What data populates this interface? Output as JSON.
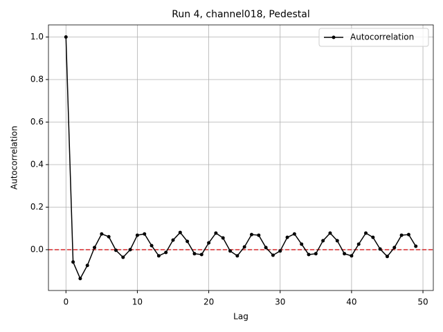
{
  "chart_data": {
    "type": "line",
    "title": "Run 4, channel018, Pedestal",
    "x_label": "Lag",
    "y_label": "Autocorrelation",
    "x": [
      0,
      1,
      2,
      3,
      4,
      5,
      6,
      7,
      8,
      9,
      10,
      11,
      12,
      13,
      14,
      15,
      16,
      17,
      18,
      19,
      20,
      21,
      22,
      23,
      24,
      25,
      26,
      27,
      28,
      29,
      30,
      31,
      32,
      33,
      34,
      35,
      36,
      37,
      38,
      39,
      40,
      41,
      42,
      43,
      44,
      45,
      46,
      47,
      48,
      49
    ],
    "series": [
      {
        "name": "Autocorrelation",
        "color": "#000000",
        "values": [
          1.0,
          -0.058,
          -0.136,
          -0.074,
          0.01,
          0.074,
          0.061,
          -0.003,
          -0.036,
          0.0,
          0.068,
          0.074,
          0.019,
          -0.029,
          -0.013,
          0.045,
          0.081,
          0.039,
          -0.019,
          -0.023,
          0.032,
          0.078,
          0.055,
          -0.006,
          -0.029,
          0.013,
          0.071,
          0.068,
          0.01,
          -0.026,
          -0.006,
          0.058,
          0.074,
          0.026,
          -0.023,
          -0.019,
          0.042,
          0.078,
          0.042,
          -0.019,
          -0.029,
          0.026,
          0.078,
          0.058,
          0.003,
          -0.032,
          0.01,
          0.068,
          0.071,
          0.016
        ]
      }
    ],
    "xlim": [
      -2.45,
      51.45
    ],
    "ylim": [
      -0.192,
      1.057
    ],
    "xticks": [
      0,
      10,
      20,
      30,
      40,
      50
    ],
    "yticks": [
      {
        "value": 0,
        "label": "0.0"
      },
      {
        "value": 0.2,
        "label": "0.2"
      },
      {
        "value": 0.4,
        "label": "0.4"
      },
      {
        "value": 0.6,
        "label": "0.6"
      },
      {
        "value": 0.8,
        "label": "0.8"
      },
      {
        "value": 1,
        "label": "1.0"
      }
    ],
    "hline": {
      "value": 0,
      "color": "#d62728"
    },
    "grid": true,
    "legend": "upper-right"
  }
}
